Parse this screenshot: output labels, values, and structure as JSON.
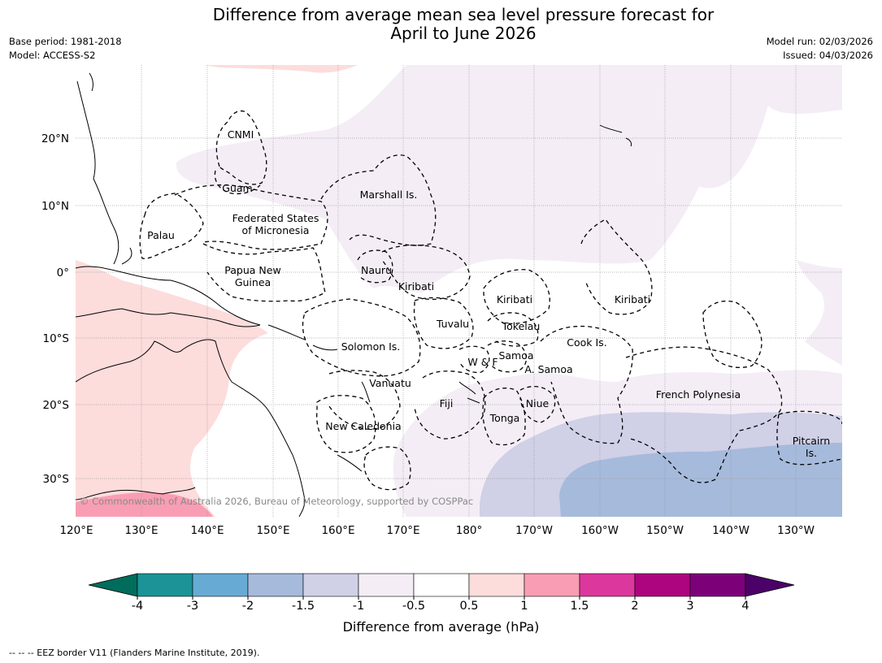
{
  "title_line1": "Difference from average mean sea level pressure forecast for",
  "title_line2": "April to June 2026",
  "meta": {
    "base_period": "Base period: 1981-2018",
    "model": "Model: ACCESS-S2",
    "model_run": "Model run: 02/03/2026",
    "issued": "Issued: 04/03/2026"
  },
  "axes": {
    "lon_labels": [
      "120°E",
      "130°E",
      "140°E",
      "150°E",
      "160°E",
      "170°E",
      "180°",
      "170°W",
      "160°W",
      "150°W",
      "140°W",
      "130°W"
    ],
    "lat_labels": [
      "20°N",
      "10°N",
      "0°",
      "10°S",
      "20°S",
      "30°S"
    ]
  },
  "places": [
    "CNMI",
    "Guam",
    "Marshall Is.",
    "Federated States",
    "of Micronesia",
    "Palau",
    "Papua New",
    "Guinea",
    "Nauru",
    "Kiribati",
    "Kiribati",
    "Kiribati",
    "Tuvalu",
    "Tokelau",
    "Solomon Is.",
    "Samoa",
    "W & F",
    "A. Samoa",
    "Cook Is.",
    "Vanuatu",
    "Fiji",
    "Niue",
    "French Polynesia",
    "Tonga",
    "New Caledonia",
    "Pitcairn",
    "Is."
  ],
  "copyright": "© Commonwealth of Australia 2026, Bureau of Meteorology, supported by COSPPac",
  "colorbar": {
    "label": "Difference from average (hPa)",
    "ticks": [
      "-4",
      "-3",
      "-2",
      "-1.5",
      "-1",
      "-0.5",
      "0.5",
      "1",
      "1.5",
      "2",
      "3",
      "4"
    ],
    "colors": [
      "#1b9397",
      "#67abd5",
      "#a6badb",
      "#d0d0e7",
      "#f4edf6",
      "#ffffff",
      "#fddcdc",
      "#f99db4",
      "#dc379d",
      "#ad047f",
      "#7c0179"
    ],
    "low_color": "#006d5c",
    "high_color": "#4b0168"
  },
  "footnote": "--  --  -- EEZ border V11 (Flanders Marine Institute, 2019)."
}
